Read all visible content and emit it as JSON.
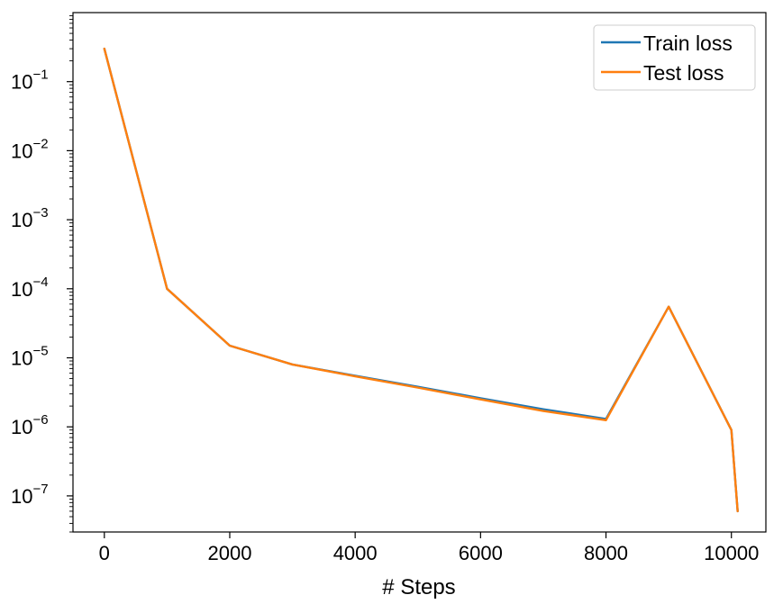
{
  "chart_data": {
    "type": "line",
    "title": "",
    "xlabel": "# Steps",
    "ylabel": "",
    "yscale": "log",
    "xlim": [
      -500,
      10550
    ],
    "ylim": [
      3e-08,
      1
    ],
    "xticks": [
      0,
      2000,
      4000,
      6000,
      8000,
      10000
    ],
    "yticks": [
      {
        "value": 0.1,
        "base": "10",
        "exp": "−1"
      },
      {
        "value": 0.01,
        "base": "10",
        "exp": "−2"
      },
      {
        "value": 0.001,
        "base": "10",
        "exp": "−3"
      },
      {
        "value": 0.0001,
        "base": "10",
        "exp": "−4"
      },
      {
        "value": 1e-05,
        "base": "10",
        "exp": "−5"
      },
      {
        "value": 1e-06,
        "base": "10",
        "exp": "−6"
      },
      {
        "value": 1e-07,
        "base": "10",
        "exp": "−7"
      }
    ],
    "grid": false,
    "legend_position": "top-right",
    "series": [
      {
        "name": "Train loss",
        "color": "#1f77b4",
        "x": [
          0,
          1000,
          2000,
          3000,
          4000,
          5000,
          6000,
          7000,
          8000,
          9000,
          10000,
          10100
        ],
        "y": [
          0.3,
          0.0001,
          1.5e-05,
          8e-06,
          5.5e-06,
          3.8e-06,
          2.6e-06,
          1.8e-06,
          1.3e-06,
          5.5e-05,
          9e-07,
          6e-08
        ]
      },
      {
        "name": "Test loss",
        "color": "#ff7f0e",
        "x": [
          0,
          1000,
          2000,
          3000,
          4000,
          5000,
          6000,
          7000,
          8000,
          9000,
          10000,
          10100
        ],
        "y": [
          0.3,
          0.0001,
          1.5e-05,
          8e-06,
          5.4e-06,
          3.7e-06,
          2.5e-06,
          1.7e-06,
          1.25e-06,
          5.5e-05,
          9e-07,
          6e-08
        ]
      }
    ]
  }
}
